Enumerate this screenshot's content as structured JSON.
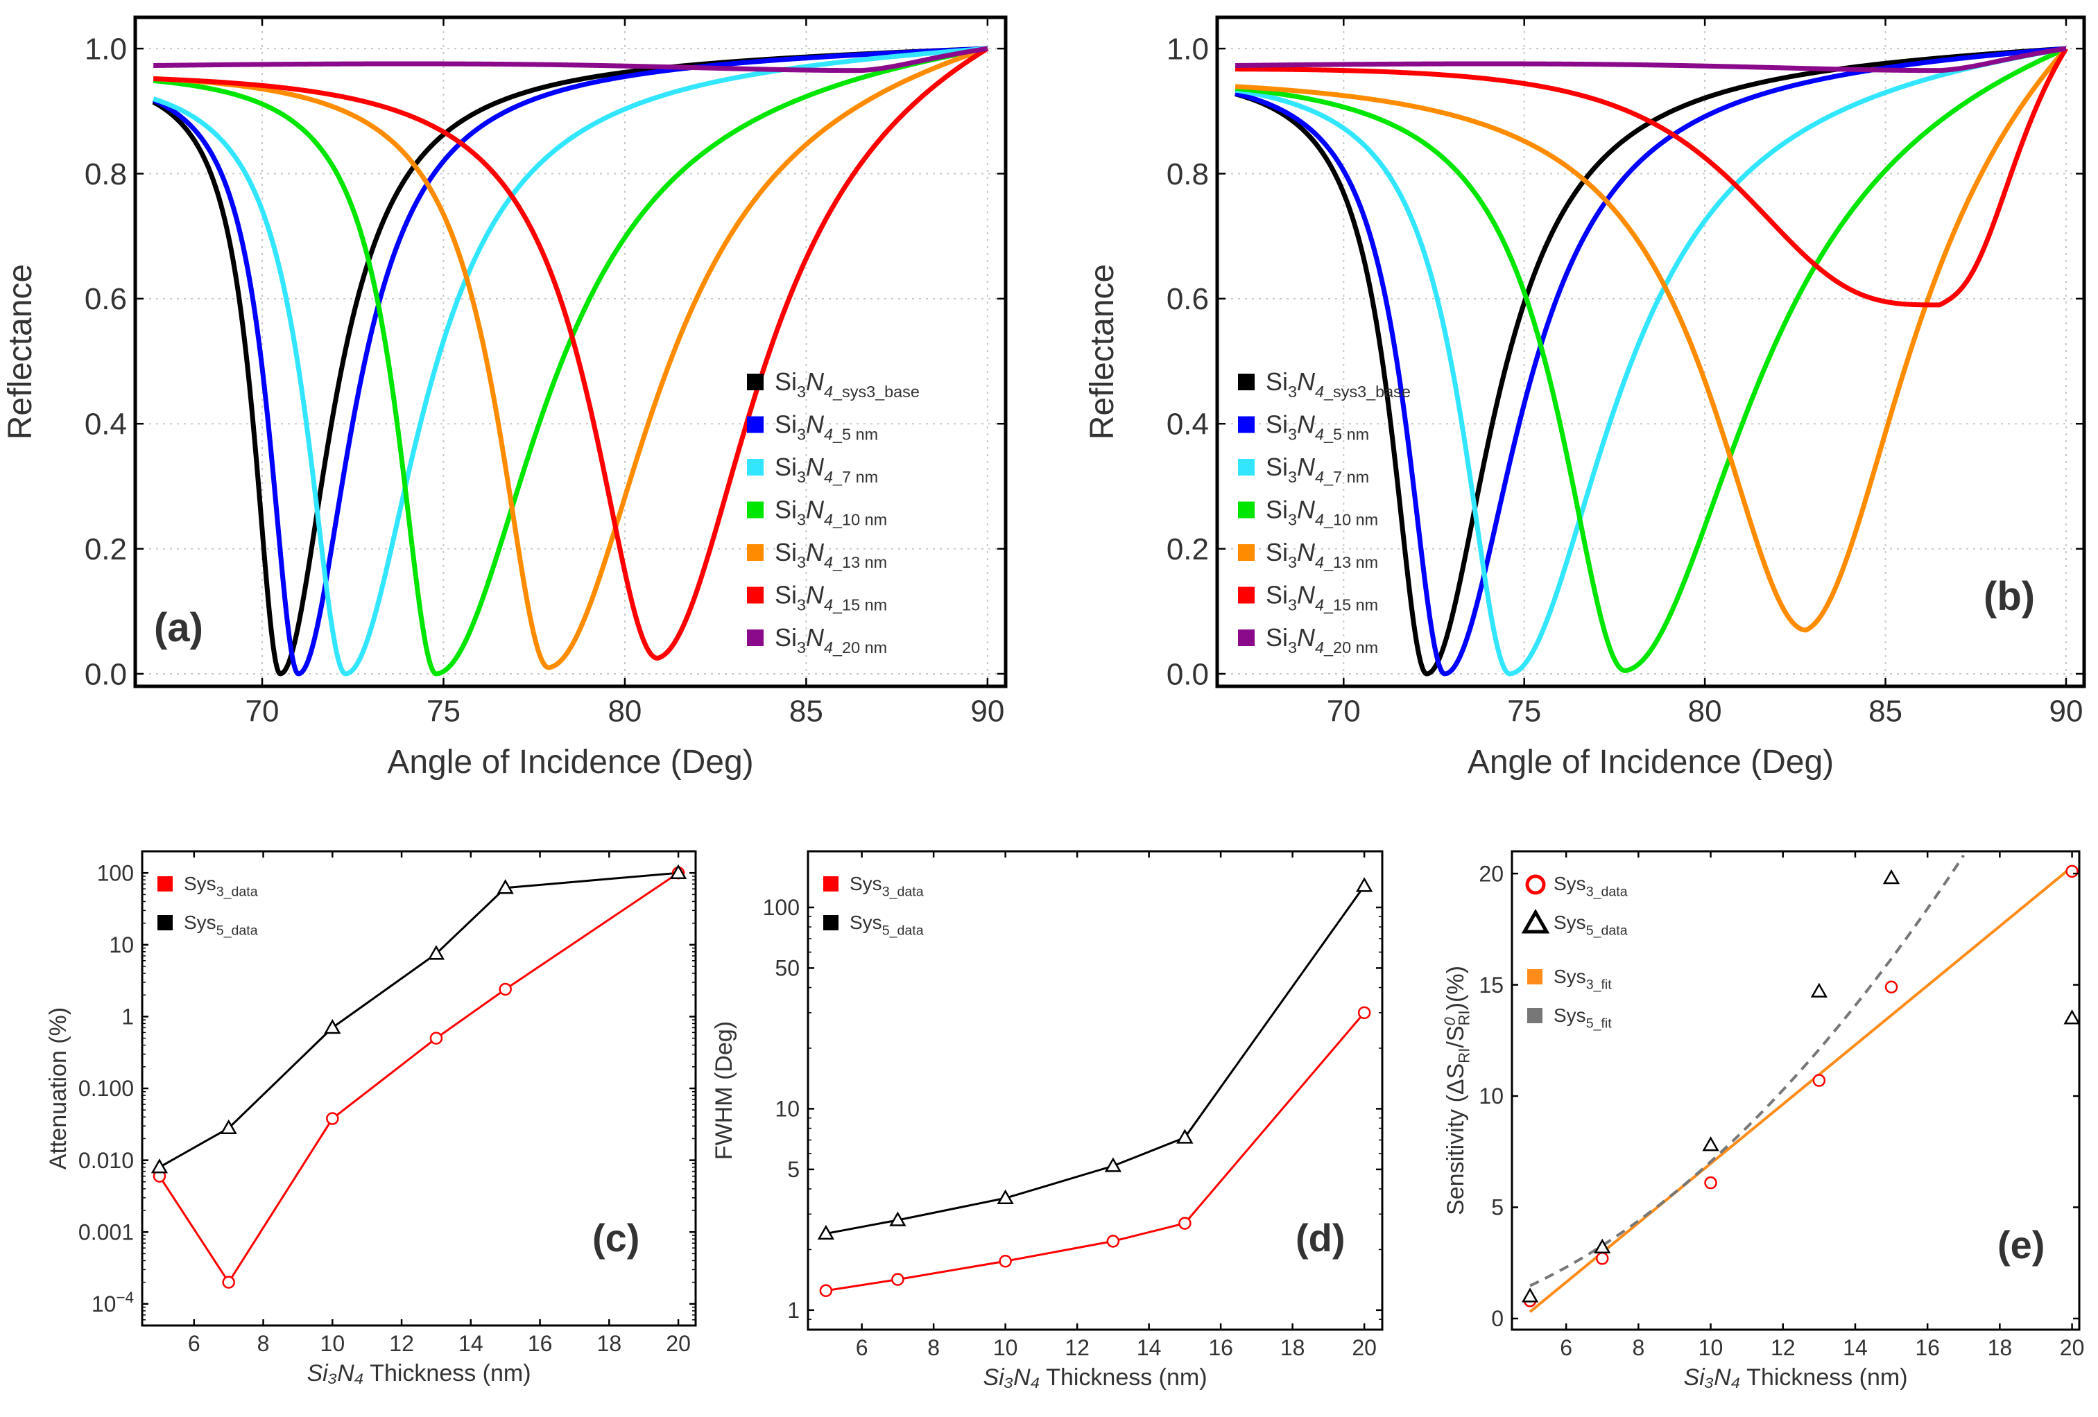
{
  "chart_data": [
    {
      "id": "a",
      "type": "line",
      "panel_label": "(a)",
      "xlabel": "Angle of Incidence (Deg)",
      "ylabel": "Reflectance",
      "xlim": [
        66.5,
        90.5
      ],
      "ylim": [
        -0.02,
        1.05
      ],
      "xticks": [
        "70",
        "75",
        "80",
        "85",
        "90"
      ],
      "yticks": [
        "0.0",
        "0.2",
        "0.4",
        "0.6",
        "0.8",
        "1.0"
      ],
      "grid": "dotted",
      "legend_position": "bottom-right",
      "series": [
        {
          "name": "Si3N4_sys3_base",
          "legend_main": "Si₃N₄",
          "legend_sub": "_sys3_base",
          "color": "#000000",
          "x0": 67,
          "r0": 0.975,
          "center": 70.5,
          "rmin": 0.0,
          "wl": 0.9,
          "wr": 1.7,
          "pl": 1.0,
          "pr": 1.0
        },
        {
          "name": "Si3N4_5nm",
          "legend_main": "Si₃N₄",
          "legend_sub": "_5 nm",
          "color": "#0000ff",
          "x0": 67,
          "r0": 0.975,
          "center": 71.0,
          "rmin": 0.0,
          "wl": 1.0,
          "wr": 1.8,
          "pl": 1.0,
          "pr": 1.0
        },
        {
          "name": "Si3N4_7nm",
          "legend_main": "Si₃N₄",
          "legend_sub": "_7 nm",
          "color": "#33e6ff",
          "x0": 67,
          "r0": 0.975,
          "center": 72.3,
          "rmin": 0.0,
          "wl": 1.3,
          "wr": 2.5,
          "pl": 1.0,
          "pr": 1.0
        },
        {
          "name": "Si3N4_10nm",
          "legend_main": "Si₃N₄",
          "legend_sub": "_10 nm",
          "color": "#00e600",
          "x0": 67,
          "r0": 0.975,
          "center": 74.8,
          "rmin": 0.0,
          "wl": 1.3,
          "wr": 3.5,
          "pl": 1.0,
          "pr": 1.0
        },
        {
          "name": "Si3N4_13nm",
          "legend_main": "Si₃N₄",
          "legend_sub": "_13 nm",
          "color": "#ff8c00",
          "x0": 67,
          "r0": 0.975,
          "center": 77.9,
          "rmin": 0.01,
          "wl": 1.7,
          "wr": 3.5,
          "pl": 1.0,
          "pr": 1.0
        },
        {
          "name": "Si3N4_15nm",
          "legend_main": "Si₃N₄",
          "legend_sub": "_15 nm",
          "color": "#ff0000",
          "x0": 67,
          "r0": 0.975,
          "center": 80.9,
          "rmin": 0.025,
          "wl": 2.2,
          "wr": 3.3,
          "pl": 1.0,
          "pr": 1.0
        },
        {
          "name": "Si3N4_20nm",
          "legend_main": "Si₃N₄",
          "legend_sub": "_20 nm",
          "color": "#8b0a8b",
          "x0": 67,
          "r0": 0.975,
          "center": 86.5,
          "rmin": 0.965,
          "wl": 10.0,
          "wr": 2.5,
          "pl": 1.0,
          "pr": 1.0
        }
      ]
    },
    {
      "id": "b",
      "type": "line",
      "panel_label": "(b)",
      "xlabel": "Angle of Incidence (Deg)",
      "ylabel": "Reflectance",
      "xlim": [
        66.5,
        90.5
      ],
      "ylim": [
        -0.02,
        1.05
      ],
      "xticks": [
        "70",
        "75",
        "80",
        "85",
        "90"
      ],
      "yticks": [
        "0.0",
        "0.2",
        "0.4",
        "0.6",
        "0.8",
        "1.0"
      ],
      "grid": "dotted",
      "legend_position": "bottom-left",
      "series": [
        {
          "name": "Si3N4_sys3_base",
          "legend_main": "Si₃N₄",
          "legend_sub": "_sys3_base",
          "color": "#000000",
          "x0": 67,
          "r0": 0.975,
          "center": 72.3,
          "rmin": 0.0,
          "wl": 1.2,
          "wr": 2.2,
          "pl": 1.0,
          "pr": 1.0
        },
        {
          "name": "Si3N4_5nm",
          "legend_main": "Si₃N₄",
          "legend_sub": "_5 nm",
          "color": "#0000ff",
          "x0": 67,
          "r0": 0.975,
          "center": 72.8,
          "rmin": 0.0,
          "wl": 1.3,
          "wr": 2.5,
          "pl": 1.0,
          "pr": 1.0
        },
        {
          "name": "Si3N4_7nm",
          "legend_main": "Si₃N₄",
          "legend_sub": "_7 nm",
          "color": "#33e6ff",
          "x0": 67,
          "r0": 0.975,
          "center": 74.6,
          "rmin": 0.0,
          "wl": 1.6,
          "wr": 3.4,
          "pl": 1.0,
          "pr": 1.0
        },
        {
          "name": "Si3N4_10nm",
          "legend_main": "Si₃N₄",
          "legend_sub": "_10 nm",
          "color": "#00e600",
          "x0": 67,
          "r0": 0.975,
          "center": 77.8,
          "rmin": 0.005,
          "wl": 2.2,
          "wr": 4.2,
          "pl": 1.0,
          "pr": 1.0
        },
        {
          "name": "Si3N4_13nm",
          "legend_main": "Si₃N₄",
          "legend_sub": "_13 nm",
          "color": "#ff8c00",
          "x0": 67,
          "r0": 0.975,
          "center": 82.8,
          "rmin": 0.07,
          "wl": 3.2,
          "wr": 3.5,
          "pl": 1.0,
          "pr": 1.0
        },
        {
          "name": "Si3N4_15nm",
          "legend_main": "Si₃N₄",
          "legend_sub": "_15 nm",
          "color": "#ff0000",
          "x0": 67,
          "r0": 0.975,
          "center": 86.5,
          "rmin": 0.59,
          "wl": 5.8,
          "wr": 2.4,
          "pl": 1.6,
          "pr": 1.4
        },
        {
          "name": "Si3N4_20nm",
          "legend_main": "Si₃N₄",
          "legend_sub": "_20 nm",
          "color": "#8b0a8b",
          "x0": 67,
          "r0": 0.975,
          "center": 86.5,
          "rmin": 0.965,
          "wl": 10.0,
          "wr": 2.5,
          "pl": 1.0,
          "pr": 1.0
        }
      ]
    },
    {
      "id": "c",
      "type": "line",
      "yscale": "log",
      "panel_label": "(c)",
      "xlabel_main": "Si₃N₄",
      "xlabel_rest": " Thickness (nm)",
      "ylabel": "Attenuation (%)",
      "xlim": [
        4.5,
        20.5
      ],
      "ylim": [
        5e-05,
        200
      ],
      "xticks": [
        "6",
        "8",
        "10",
        "12",
        "14",
        "16",
        "18",
        "20"
      ],
      "yticks": [
        "100",
        "10",
        "1",
        "0.100",
        "0.010",
        "0.001",
        "10⁻⁴"
      ],
      "legend_position": "top-left",
      "series": [
        {
          "name": "Sys3_data",
          "legend_main": "Sys",
          "legend_sub": "3_data",
          "color": "#ff0000",
          "marker": "circle",
          "x": [
            5,
            7,
            10,
            13,
            15,
            20
          ],
          "y": [
            0.006,
            0.0002,
            0.038,
            0.5,
            2.4,
            100
          ]
        },
        {
          "name": "Sys5_data",
          "legend_main": "Sys",
          "legend_sub": "5_data",
          "color": "#000000",
          "marker": "triangle",
          "x": [
            5,
            7,
            10,
            13,
            15,
            20
          ],
          "y": [
            0.008,
            0.028,
            0.7,
            7.5,
            62,
            100
          ]
        }
      ]
    },
    {
      "id": "d",
      "type": "line",
      "yscale": "log",
      "panel_label": "(d)",
      "xlabel_main": "Si₃N₄",
      "xlabel_rest": " Thickness (nm)",
      "ylabel": "FWHM (Deg)",
      "xlim": [
        4.5,
        20.5
      ],
      "ylim": [
        0.8,
        190
      ],
      "xticks": [
        "6",
        "8",
        "10",
        "12",
        "14",
        "16",
        "18",
        "20"
      ],
      "yticks": [
        "100",
        "50",
        "10",
        "5",
        "1"
      ],
      "legend_position": "top-left",
      "series": [
        {
          "name": "Sys3_data",
          "legend_main": "Sys",
          "legend_sub": "3_data",
          "color": "#ff0000",
          "marker": "circle",
          "x": [
            5,
            7,
            10,
            13,
            15,
            20
          ],
          "y": [
            1.25,
            1.42,
            1.75,
            2.2,
            2.7,
            30
          ]
        },
        {
          "name": "Sys5_data",
          "legend_main": "Sys",
          "legend_sub": "5_data",
          "color": "#000000",
          "marker": "triangle",
          "x": [
            5,
            7,
            10,
            13,
            15,
            20
          ],
          "y": [
            2.4,
            2.8,
            3.6,
            5.2,
            7.2,
            128
          ]
        }
      ]
    },
    {
      "id": "e",
      "type": "scatter",
      "panel_label": "(e)",
      "xlabel_main": "Si₃N₄",
      "xlabel_rest": " Thickness (nm)",
      "ylabel": "Sensitivity (ΔS_RI/S⁰_RI)(%)",
      "ylabel_parts": {
        "pre": "Sensitivity (ΔS",
        "sub1": "RI",
        "mid": "/S",
        "sup": "0",
        "sub2": "RI",
        "post": ")(%)"
      },
      "xlim": [
        4.5,
        20.2
      ],
      "ylim": [
        -0.5,
        21
      ],
      "xticks": [
        "6",
        "8",
        "10",
        "12",
        "14",
        "16",
        "18",
        "20"
      ],
      "yticks": [
        "0",
        "5",
        "10",
        "15",
        "20"
      ],
      "legend_position": "top-left",
      "series": [
        {
          "name": "Sys3_data",
          "legend_main": "Sys",
          "legend_sub": "3_data",
          "color": "#ff0000",
          "marker": "circle",
          "x": [
            5,
            7,
            10,
            13,
            15,
            20
          ],
          "y": [
            0.8,
            2.7,
            6.1,
            10.7,
            14.9,
            20.1
          ]
        },
        {
          "name": "Sys5_data",
          "legend_main": "Sys",
          "legend_sub": "5_data",
          "color": "#000000",
          "marker": "triangle",
          "x": [
            5,
            7,
            10,
            13,
            15,
            20
          ],
          "y": [
            1.0,
            3.2,
            7.8,
            14.7,
            19.8,
            13.5
          ]
        },
        {
          "name": "Sys3_fit",
          "legend_main": "Sys",
          "legend_sub": "3_fit",
          "color": "#ff8c1a",
          "marker": "line",
          "fit": "linear",
          "x_range": [
            5,
            20
          ],
          "y_range": [
            0.3,
            20.3
          ]
        },
        {
          "name": "Sys5_fit",
          "legend_main": "Sys",
          "legend_sub": "5_fit",
          "color": "#777777",
          "marker": "dashed",
          "fit": "quadratic",
          "coeffs": [
            -0.55,
            0.05,
            0.071
          ],
          "x_range": [
            5,
            17
          ]
        }
      ]
    }
  ]
}
